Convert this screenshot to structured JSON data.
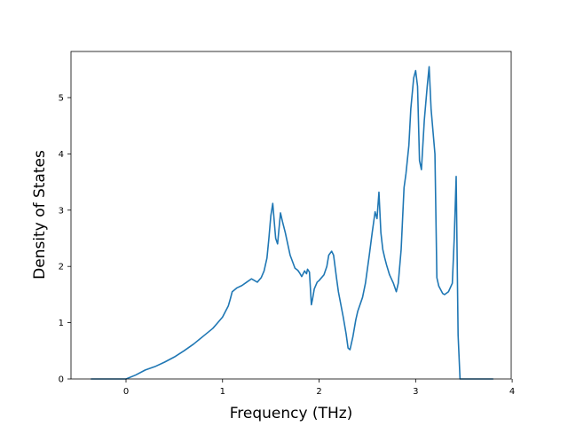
{
  "chart_data": {
    "type": "line",
    "title": "",
    "xlabel": "Frequency (THz)",
    "ylabel": "Density of States",
    "xlim": [
      -0.57,
      3.99
    ],
    "ylim": [
      0,
      5.82
    ],
    "xticks": [
      0,
      1,
      2,
      3,
      4
    ],
    "xtick_labels": [
      "0",
      "1",
      "2",
      "3",
      "4"
    ],
    "yticks": [
      0,
      1,
      2,
      3,
      4,
      5
    ],
    "ytick_labels": [
      "0",
      "1",
      "2",
      "3",
      "4",
      "5"
    ],
    "grid": false,
    "legend": "none",
    "series": [
      {
        "color": "#1f77b4",
        "x": [
          -0.36,
          -0.2,
          0.0,
          0.1,
          0.2,
          0.3,
          0.4,
          0.5,
          0.6,
          0.7,
          0.8,
          0.9,
          0.95,
          1.0,
          1.03,
          1.06,
          1.08,
          1.1,
          1.15,
          1.2,
          1.25,
          1.3,
          1.33,
          1.36,
          1.4,
          1.43,
          1.46,
          1.48,
          1.5,
          1.52,
          1.55,
          1.57,
          1.6,
          1.62,
          1.65,
          1.7,
          1.75,
          1.78,
          1.8,
          1.82,
          1.85,
          1.87,
          1.88,
          1.9,
          1.92,
          1.93,
          1.95,
          1.98,
          2.0,
          2.05,
          2.08,
          2.1,
          2.13,
          2.15,
          2.18,
          2.2,
          2.25,
          2.28,
          2.3,
          2.32,
          2.35,
          2.38,
          2.4,
          2.45,
          2.48,
          2.52,
          2.55,
          2.58,
          2.6,
          2.62,
          2.64,
          2.66,
          2.68,
          2.7,
          2.73,
          2.77,
          2.8,
          2.82,
          2.85,
          2.88,
          2.9,
          2.93,
          2.95,
          2.98,
          3.0,
          3.02,
          3.04,
          3.06,
          3.09,
          3.12,
          3.14,
          3.16,
          3.2,
          3.22,
          3.24,
          3.28,
          3.3,
          3.34,
          3.38,
          3.4,
          3.42,
          3.44,
          3.46,
          3.48,
          3.6,
          3.8
        ],
        "y": [
          0.0,
          0.0,
          0.0,
          0.07,
          0.16,
          0.22,
          0.3,
          0.39,
          0.5,
          0.62,
          0.76,
          0.9,
          1.0,
          1.1,
          1.2,
          1.3,
          1.42,
          1.55,
          1.62,
          1.66,
          1.72,
          1.78,
          1.75,
          1.72,
          1.8,
          1.92,
          2.15,
          2.5,
          2.9,
          3.12,
          2.5,
          2.4,
          2.95,
          2.8,
          2.6,
          2.2,
          1.97,
          1.93,
          1.88,
          1.82,
          1.92,
          1.87,
          1.95,
          1.9,
          1.32,
          1.4,
          1.6,
          1.72,
          1.75,
          1.85,
          2.0,
          2.2,
          2.27,
          2.2,
          1.8,
          1.55,
          1.1,
          0.8,
          0.55,
          0.52,
          0.75,
          1.05,
          1.2,
          1.45,
          1.7,
          2.2,
          2.6,
          2.97,
          2.85,
          3.32,
          2.6,
          2.3,
          2.15,
          2.02,
          1.85,
          1.7,
          1.55,
          1.7,
          2.3,
          3.4,
          3.65,
          4.15,
          4.8,
          5.35,
          5.48,
          5.2,
          3.88,
          3.72,
          4.6,
          5.2,
          5.55,
          4.8,
          4.0,
          1.8,
          1.65,
          1.52,
          1.5,
          1.55,
          1.7,
          2.5,
          3.6,
          0.78,
          0.0,
          0.0,
          0.0,
          0.0
        ]
      }
    ]
  }
}
